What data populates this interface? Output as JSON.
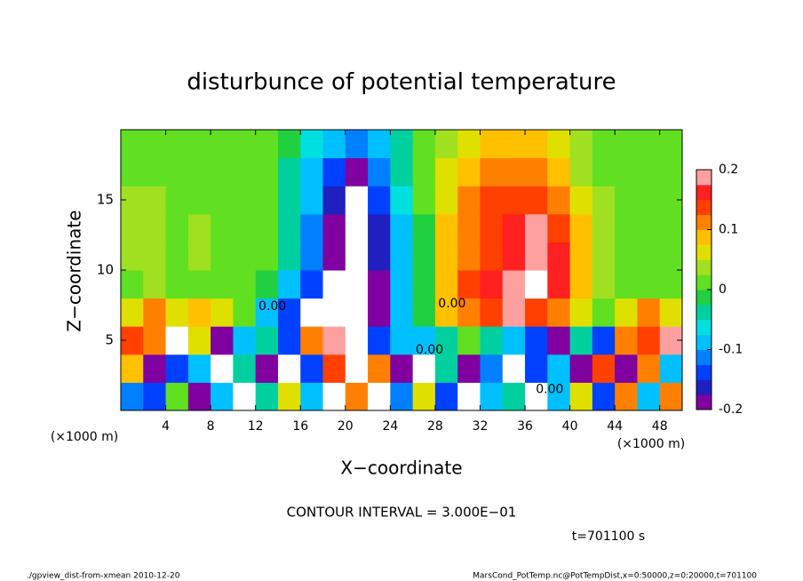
{
  "chart_data": {
    "type": "heatmap",
    "title": "disturbunce of potential temperature",
    "x_label": "X−coordinate",
    "y_label": "Z−coordinate",
    "x_unit": "(×1000 m)",
    "y_unit": "(×1000 m)",
    "contour_interval": "CONTOUR INTERVAL = 3.000E−01",
    "time_label": "t=701100 s",
    "footer_left": "./gpview_dist-from-xmean  2010-12-20",
    "footer_right": "MarsCond_PotTemp.nc@PotTempDist,x=0:50000,z=0:20000,t=701100",
    "xlim": [
      0,
      50
    ],
    "ylim": [
      0,
      20
    ],
    "xticks": [
      4,
      8,
      12,
      16,
      20,
      24,
      28,
      32,
      36,
      40,
      44,
      48
    ],
    "yticks": [
      5,
      10,
      15
    ],
    "clim": [
      -0.2,
      0.2
    ],
    "cticks": [
      -0.2,
      -0.1,
      0,
      0.1,
      0.2
    ],
    "colormap": [
      "#8000a0",
      "#2020c0",
      "#0040ff",
      "#0080ff",
      "#00c0ff",
      "#00e0e0",
      "#00d0a0",
      "#20d040",
      "#60e020",
      "#a0e020",
      "#e0e000",
      "#ffc000",
      "#ff8000",
      "#ff4000",
      "#ff2020",
      "#ffa0a0"
    ],
    "out_of_range_color": "#ffffff",
    "x": [
      1,
      3,
      5,
      7,
      9,
      11,
      13,
      15,
      17,
      19,
      21,
      23,
      25,
      27,
      29,
      31,
      33,
      35,
      37,
      39,
      41,
      43,
      45,
      47,
      49
    ],
    "y": [
      1,
      3,
      5,
      7,
      9,
      11,
      13,
      15,
      17,
      19
    ],
    "z": [
      [
        -0.12,
        -0.15,
        0.02,
        -0.2,
        -0.1,
        -0.25,
        -0.05,
        0.05,
        -0.1,
        -0.25,
        0.1,
        -0.25,
        -0.12,
        0.05,
        -0.15,
        -0.25,
        -0.08,
        -0.05,
        -0.25,
        -0.1,
        0.05,
        -0.15,
        0.1,
        -0.08,
        0.12
      ],
      [
        0.08,
        -0.2,
        -0.15,
        -0.1,
        -0.22,
        -0.05,
        -0.2,
        -0.25,
        -0.15,
        0.15,
        -0.25,
        0.1,
        -0.2,
        -0.25,
        -0.05,
        -0.2,
        -0.12,
        -0.25,
        -0.15,
        -0.1,
        -0.2,
        0.15,
        -0.18,
        0.12,
        -0.1
      ],
      [
        0.15,
        0.1,
        -0.25,
        0.05,
        -0.2,
        -0.1,
        -0.05,
        -0.15,
        0.1,
        0.2,
        -0.25,
        -0.15,
        -0.1,
        -0.08,
        -0.05,
        0.02,
        -0.05,
        -0.1,
        -0.15,
        -0.2,
        -0.05,
        -0.15,
        0.1,
        0.15,
        0.2
      ],
      [
        0.05,
        0.1,
        0.05,
        0.08,
        0.05,
        0.02,
        -0.1,
        -0.15,
        -0.25,
        -0.25,
        -0.25,
        -0.2,
        -0.1,
        -0.02,
        0.08,
        0.12,
        0.15,
        0.18,
        0.15,
        0.1,
        0.05,
        0.02,
        0.05,
        0.1,
        0.05
      ],
      [
        0.02,
        0.03,
        0.02,
        0.02,
        0.02,
        0.01,
        -0.02,
        -0.08,
        -0.15,
        -0.22,
        -0.25,
        -0.2,
        -0.1,
        -0.02,
        0.08,
        0.13,
        0.16,
        0.19,
        0.21,
        0.17,
        0.08,
        0.03,
        0.02,
        0.02,
        0.02
      ],
      [
        0.03,
        0.03,
        0.02,
        0.03,
        0.02,
        0.01,
        0.0,
        -0.05,
        -0.12,
        -0.18,
        -0.25,
        -0.16,
        -0.08,
        -0.01,
        0.08,
        0.12,
        0.15,
        0.17,
        0.2,
        0.16,
        0.08,
        0.03,
        0.02,
        0.02,
        0.02
      ],
      [
        0.03,
        0.03,
        0.02,
        0.03,
        0.02,
        0.01,
        0.0,
        -0.05,
        -0.12,
        -0.18,
        -0.24,
        -0.17,
        -0.08,
        -0.01,
        0.08,
        0.12,
        0.15,
        0.17,
        0.18,
        0.15,
        0.08,
        0.03,
        0.02,
        0.02,
        0.02
      ],
      [
        0.03,
        0.03,
        0.02,
        0.02,
        0.02,
        0.01,
        0.0,
        -0.04,
        -0.1,
        -0.17,
        -0.21,
        -0.15,
        -0.07,
        0.0,
        0.07,
        0.11,
        0.14,
        0.15,
        0.15,
        0.12,
        0.06,
        0.03,
        0.02,
        0.02,
        0.02
      ],
      [
        0.02,
        0.02,
        0.02,
        0.02,
        0.02,
        0.01,
        0.0,
        -0.03,
        -0.08,
        -0.14,
        -0.18,
        -0.12,
        -0.05,
        0.0,
        0.05,
        0.09,
        0.11,
        0.12,
        0.12,
        0.08,
        0.04,
        0.02,
        0.02,
        0.02,
        0.02
      ],
      [
        0.02,
        0.02,
        0.02,
        0.02,
        0.01,
        0.01,
        0.0,
        -0.02,
        -0.06,
        -0.1,
        -0.12,
        -0.09,
        -0.04,
        0.0,
        0.04,
        0.07,
        0.09,
        0.09,
        0.08,
        0.05,
        0.03,
        0.02,
        0.02,
        0.02,
        0.02
      ]
    ],
    "contour_labels": [
      {
        "text": "0.00",
        "x": 29.5,
        "y": 7.6
      },
      {
        "text": "0.00",
        "x": 27.5,
        "y": 4.3
      },
      {
        "text": "0.00",
        "x": 38.2,
        "y": 1.5
      },
      {
        "text": "0.00",
        "x": 13.5,
        "y": 7.4
      }
    ]
  }
}
